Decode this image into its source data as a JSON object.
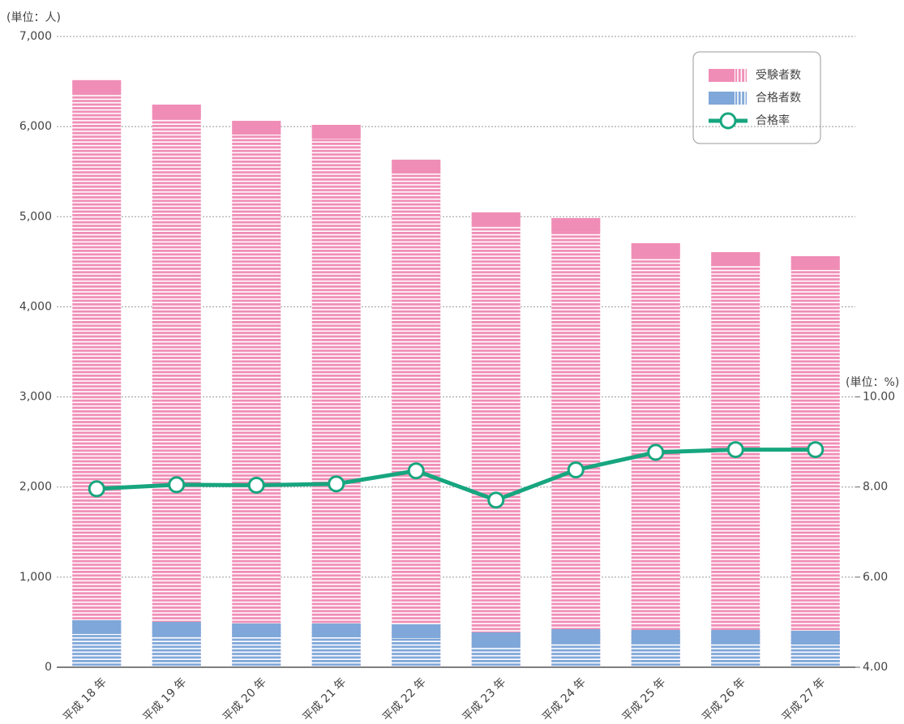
{
  "chart_data": {
    "type": "bar",
    "y_label": "(単位：人)",
    "y2_label": "(単位：%)",
    "categories": [
      "平成 18 年",
      "平成 19 年",
      "平成 20 年",
      "平成 21 年",
      "平成 22 年",
      "平成 23 年",
      "平成 24 年",
      "平成 25 年",
      "平成 26 年",
      "平成 27 年"
    ],
    "series": [
      {
        "name": "受験者数",
        "color": "#f08db6",
        "values": [
          6515,
          6244,
          6064,
          6019,
          5633,
          5048,
          4985,
          4706,
          4607,
          4562
        ]
      },
      {
        "name": "合格者数",
        "color": "#7fa7d9",
        "values": [
          522,
          504,
          486,
          486,
          477,
          387,
          423,
          414,
          414,
          405
        ]
      },
      {
        "name": "合格率",
        "color": "#17a67f",
        "type": "line",
        "axis": "y2",
        "values": [
          7.96,
          8.05,
          8.04,
          8.07,
          8.36,
          7.71,
          8.38,
          8.77,
          8.83,
          8.83
        ]
      }
    ],
    "ylim": [
      0,
      7000
    ],
    "yticks": [
      0,
      {
        "value": 1000,
        "label": "1,000"
      },
      {
        "value": 2000,
        "label": "2,000"
      },
      {
        "value": 3000,
        "label": "3,000"
      },
      {
        "value": 4000,
        "label": "4,000"
      },
      {
        "value": 5000,
        "label": "5,000"
      },
      {
        "value": 6000,
        "label": "6,000"
      },
      {
        "value": 7000,
        "label": "7,000"
      }
    ],
    "y2lim": [
      4,
      18
    ],
    "y2ticks": [
      {
        "value": 4,
        "label": "4.00"
      },
      {
        "value": 6,
        "label": "6.00"
      },
      {
        "value": 8,
        "label": "8.00"
      },
      {
        "value": 10,
        "label": "10.00"
      }
    ],
    "grid": true,
    "legend": "upper right"
  }
}
